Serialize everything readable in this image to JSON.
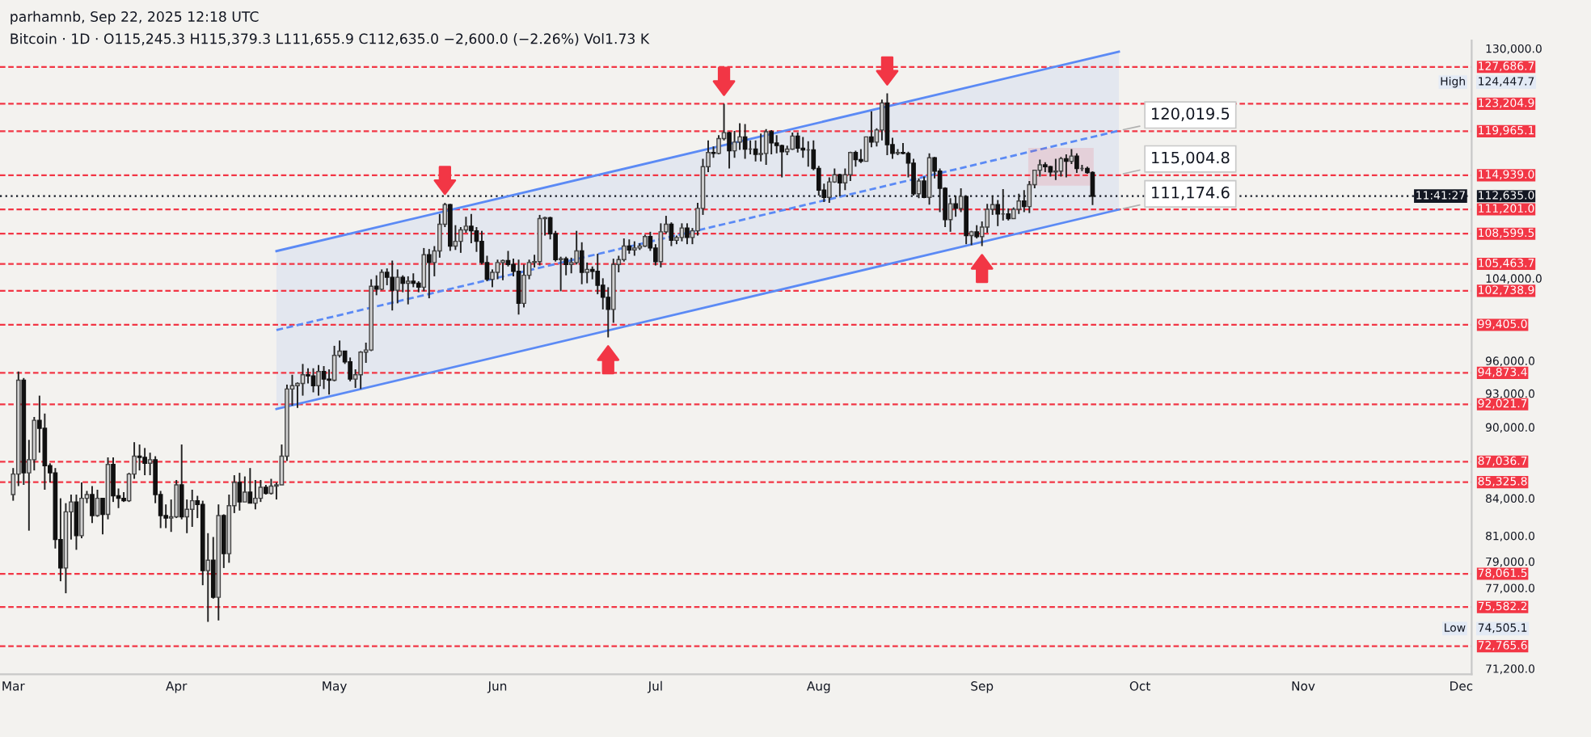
{
  "chart_data": {
    "type": "candlestick",
    "title": "Bitcoin · 1D · O115,245.3 H115,379.3 L111,655.9 C112,635.0 −2,600.0 (−2.26%) Vol1.73 K",
    "subtitle": "parhamnb, Sep 22, 2025 12:18 UTC",
    "log": true,
    "grid": false,
    "legend": false,
    "xlim": [
      "2025-02-26T12:00",
      "2025-12-03"
    ],
    "xticks": [
      {
        "value": "2025-03-01",
        "label": "Mar"
      },
      {
        "value": "2025-04-01",
        "label": "Apr"
      },
      {
        "value": "2025-05-01",
        "label": "May"
      },
      {
        "value": "2025-06-01",
        "label": "Jun"
      },
      {
        "value": "2025-07-01",
        "label": "Jul"
      },
      {
        "value": "2025-08-01",
        "label": "Aug"
      },
      {
        "value": "2025-09-01",
        "label": "Sep"
      },
      {
        "value": "2025-10-01",
        "label": "Oct"
      },
      {
        "value": "2025-11-01",
        "label": "Nov"
      },
      {
        "value": "2025-12-01",
        "label": "Dec"
      }
    ],
    "ylim": [
      70800,
      131000
    ],
    "yticks": [
      {
        "value": 130000,
        "label": "130,000.0"
      },
      {
        "value": 104000,
        "label": "104,000.0"
      },
      {
        "value": 96000,
        "label": "96,000.0"
      },
      {
        "value": 93000,
        "label": "93,000.0"
      },
      {
        "value": 90000,
        "label": "90,000.0"
      },
      {
        "value": 84000,
        "label": "84,000.0"
      },
      {
        "value": 81000,
        "label": "81,000.0"
      },
      {
        "value": 79000,
        "label": "79,000.0"
      },
      {
        "value": 77000,
        "label": "77,000.0"
      },
      {
        "value": 71200,
        "label": "71,200.0"
      }
    ],
    "x": [
      "2025-03-01",
      "2025-03-02",
      "2025-03-03",
      "2025-03-04",
      "2025-03-05",
      "2025-03-06",
      "2025-03-07",
      "2025-03-08",
      "2025-03-09",
      "2025-03-10",
      "2025-03-11",
      "2025-03-12",
      "2025-03-13",
      "2025-03-14",
      "2025-03-15",
      "2025-03-16",
      "2025-03-17",
      "2025-03-18",
      "2025-03-19",
      "2025-03-20",
      "2025-03-21",
      "2025-03-22",
      "2025-03-23",
      "2025-03-24",
      "2025-03-25",
      "2025-03-26",
      "2025-03-27",
      "2025-03-28",
      "2025-03-29",
      "2025-03-30",
      "2025-03-31",
      "2025-04-01",
      "2025-04-02",
      "2025-04-03",
      "2025-04-04",
      "2025-04-05",
      "2025-04-06",
      "2025-04-07",
      "2025-04-08",
      "2025-04-09",
      "2025-04-10",
      "2025-04-11",
      "2025-04-12",
      "2025-04-13",
      "2025-04-14",
      "2025-04-15",
      "2025-04-16",
      "2025-04-17",
      "2025-04-18",
      "2025-04-19",
      "2025-04-20",
      "2025-04-21",
      "2025-04-22",
      "2025-04-23",
      "2025-04-24",
      "2025-04-25",
      "2025-04-26",
      "2025-04-27",
      "2025-04-28",
      "2025-04-29",
      "2025-04-30",
      "2025-05-01",
      "2025-05-02",
      "2025-05-03",
      "2025-05-04",
      "2025-05-05",
      "2025-05-06",
      "2025-05-07",
      "2025-05-08",
      "2025-05-09",
      "2025-05-10",
      "2025-05-11",
      "2025-05-12",
      "2025-05-13",
      "2025-05-14",
      "2025-05-15",
      "2025-05-16",
      "2025-05-17",
      "2025-05-18",
      "2025-05-19",
      "2025-05-20",
      "2025-05-21",
      "2025-05-22",
      "2025-05-23",
      "2025-05-24",
      "2025-05-25",
      "2025-05-26",
      "2025-05-27",
      "2025-05-28",
      "2025-05-29",
      "2025-05-30",
      "2025-05-31",
      "2025-06-01",
      "2025-06-02",
      "2025-06-03",
      "2025-06-04",
      "2025-06-05",
      "2025-06-06",
      "2025-06-07",
      "2025-06-08",
      "2025-06-09",
      "2025-06-10",
      "2025-06-11",
      "2025-06-12",
      "2025-06-13",
      "2025-06-14",
      "2025-06-15",
      "2025-06-16",
      "2025-06-17",
      "2025-06-18",
      "2025-06-19",
      "2025-06-20",
      "2025-06-21",
      "2025-06-22",
      "2025-06-23",
      "2025-06-24",
      "2025-06-25",
      "2025-06-26",
      "2025-06-27",
      "2025-06-28",
      "2025-06-29",
      "2025-06-30",
      "2025-07-01",
      "2025-07-02",
      "2025-07-03",
      "2025-07-04",
      "2025-07-05",
      "2025-07-06",
      "2025-07-07",
      "2025-07-08",
      "2025-07-09",
      "2025-07-10",
      "2025-07-11",
      "2025-07-12",
      "2025-07-13",
      "2025-07-14",
      "2025-07-15",
      "2025-07-16",
      "2025-07-17",
      "2025-07-18",
      "2025-07-19",
      "2025-07-20",
      "2025-07-21",
      "2025-07-22",
      "2025-07-23",
      "2025-07-24",
      "2025-07-25",
      "2025-07-26",
      "2025-07-27",
      "2025-07-28",
      "2025-07-29",
      "2025-07-30",
      "2025-07-31",
      "2025-08-01",
      "2025-08-02",
      "2025-08-03",
      "2025-08-04",
      "2025-08-05",
      "2025-08-06",
      "2025-08-07",
      "2025-08-08",
      "2025-08-09",
      "2025-08-10",
      "2025-08-11",
      "2025-08-12",
      "2025-08-13",
      "2025-08-14",
      "2025-08-15",
      "2025-08-16",
      "2025-08-17",
      "2025-08-18",
      "2025-08-19",
      "2025-08-20",
      "2025-08-21",
      "2025-08-22",
      "2025-08-23",
      "2025-08-24",
      "2025-08-25",
      "2025-08-26",
      "2025-08-27",
      "2025-08-28",
      "2025-08-29",
      "2025-08-30",
      "2025-08-31",
      "2025-09-01",
      "2025-09-02",
      "2025-09-03",
      "2025-09-04",
      "2025-09-05",
      "2025-09-06",
      "2025-09-07",
      "2025-09-08",
      "2025-09-09",
      "2025-09-10",
      "2025-09-11",
      "2025-09-12",
      "2025-09-13",
      "2025-09-14",
      "2025-09-15",
      "2025-09-16",
      "2025-09-17",
      "2025-09-18",
      "2025-09-19",
      "2025-09-20",
      "2025-09-21",
      "2025-09-22"
    ],
    "ohlc": [
      [
        84300,
        86500,
        83800,
        86000
      ],
      [
        86000,
        95000,
        85000,
        94200
      ],
      [
        94200,
        94400,
        85100,
        86100
      ],
      [
        86100,
        88900,
        81400,
        87200
      ],
      [
        87200,
        90900,
        86300,
        90600
      ],
      [
        90600,
        92800,
        87800,
        89900
      ],
      [
        89900,
        91200,
        84700,
        86700
      ],
      [
        86700,
        86900,
        85300,
        86100
      ],
      [
        86100,
        86500,
        80000,
        80700
      ],
      [
        80700,
        84000,
        77500,
        78500
      ],
      [
        78500,
        83600,
        76600,
        82900
      ],
      [
        82900,
        84300,
        80700,
        83700
      ],
      [
        83700,
        84300,
        79900,
        81000
      ],
      [
        81000,
        85300,
        80800,
        84000
      ],
      [
        84000,
        84600,
        83600,
        84300
      ],
      [
        84300,
        85000,
        82000,
        82600
      ],
      [
        82600,
        84700,
        82500,
        84000
      ],
      [
        84000,
        84000,
        81100,
        82700
      ],
      [
        82700,
        87400,
        82300,
        86800
      ],
      [
        86800,
        87400,
        83700,
        84200
      ],
      [
        84200,
        84800,
        83200,
        84000
      ],
      [
        84000,
        84500,
        83700,
        83800
      ],
      [
        83800,
        86100,
        83700,
        86000
      ],
      [
        86000,
        88700,
        85600,
        87500
      ],
      [
        87500,
        88500,
        86300,
        87400
      ],
      [
        87400,
        88200,
        85900,
        86900
      ],
      [
        86900,
        87800,
        85900,
        87200
      ],
      [
        87200,
        87500,
        83600,
        84300
      ],
      [
        84300,
        84600,
        81600,
        82600
      ],
      [
        82600,
        83500,
        81600,
        82400
      ],
      [
        82400,
        83900,
        81300,
        82500
      ],
      [
        82500,
        85500,
        82400,
        85100
      ],
      [
        85100,
        88500,
        82300,
        82500
      ],
      [
        82500,
        83900,
        81200,
        83100
      ],
      [
        83100,
        84700,
        81700,
        83800
      ],
      [
        83800,
        84200,
        82400,
        83500
      ],
      [
        83500,
        83800,
        77200,
        78300
      ],
      [
        78300,
        81200,
        74505.1,
        79100
      ],
      [
        79100,
        80900,
        76200,
        76300
      ],
      [
        76300,
        83500,
        74600,
        82600
      ],
      [
        82600,
        82700,
        78500,
        79600
      ],
      [
        79600,
        84300,
        78900,
        83400
      ],
      [
        83400,
        85900,
        82800,
        85300
      ],
      [
        85300,
        86100,
        83000,
        83700
      ],
      [
        83700,
        85800,
        83700,
        84500
      ],
      [
        84500,
        86500,
        83600,
        83600
      ],
      [
        83600,
        85500,
        83100,
        84000
      ],
      [
        84000,
        85500,
        83700,
        84900
      ],
      [
        84900,
        85100,
        84300,
        84400
      ],
      [
        84400,
        85600,
        84300,
        85000
      ],
      [
        85000,
        85300,
        83900,
        85100
      ],
      [
        85100,
        88500,
        85100,
        87500
      ],
      [
        87500,
        93800,
        87100,
        93400
      ],
      [
        93400,
        94700,
        91900,
        93700
      ],
      [
        93700,
        94000,
        91700,
        93900
      ],
      [
        93900,
        95700,
        92800,
        94700
      ],
      [
        94700,
        95300,
        93900,
        94600
      ],
      [
        94600,
        95300,
        93100,
        93700
      ],
      [
        93700,
        95600,
        92800,
        95000
      ],
      [
        95000,
        95500,
        93400,
        94300
      ],
      [
        94300,
        95200,
        92900,
        94200
      ],
      [
        94200,
        97400,
        94100,
        96500
      ],
      [
        96500,
        97900,
        96300,
        96900
      ],
      [
        96900,
        96900,
        95700,
        95900
      ],
      [
        95900,
        96300,
        94100,
        94300
      ],
      [
        94300,
        95200,
        93500,
        94700
      ],
      [
        94700,
        96900,
        93400,
        96800
      ],
      [
        96800,
        97700,
        95800,
        97000
      ],
      [
        97000,
        103900,
        96900,
        103200
      ],
      [
        103200,
        104300,
        102300,
        102900
      ],
      [
        102900,
        104900,
        102800,
        104600
      ],
      [
        104600,
        105000,
        103300,
        104100
      ],
      [
        104100,
        105800,
        100800,
        102800
      ],
      [
        102800,
        104900,
        101500,
        104100
      ],
      [
        104100,
        104300,
        102600,
        103500
      ],
      [
        103500,
        104200,
        101400,
        103700
      ],
      [
        103700,
        104500,
        103100,
        103500
      ],
      [
        103500,
        103700,
        102600,
        103100
      ],
      [
        103100,
        107100,
        102700,
        106400
      ],
      [
        106400,
        107000,
        102000,
        105600
      ],
      [
        105600,
        107300,
        104200,
        106800
      ],
      [
        106800,
        110700,
        106100,
        109600
      ],
      [
        109600,
        111900,
        109300,
        111700
      ],
      [
        111700,
        111800,
        106800,
        107300
      ],
      [
        107300,
        109500,
        106900,
        107800
      ],
      [
        107800,
        109300,
        106600,
        109000
      ],
      [
        109000,
        110400,
        108700,
        109400
      ],
      [
        109400,
        110700,
        107600,
        108900
      ],
      [
        108900,
        109300,
        106700,
        107800
      ],
      [
        107800,
        108900,
        105400,
        105600
      ],
      [
        105600,
        106300,
        103700,
        103900
      ],
      [
        103900,
        104900,
        103100,
        104600
      ],
      [
        104600,
        105900,
        103900,
        105600
      ],
      [
        105600,
        105900,
        103800,
        105800
      ],
      [
        105800,
        106800,
        105200,
        105400
      ],
      [
        105400,
        106000,
        104200,
        104700
      ],
      [
        104700,
        105900,
        100400,
        101500
      ],
      [
        101500,
        105400,
        101100,
        104300
      ],
      [
        104300,
        105900,
        103900,
        105600
      ],
      [
        105600,
        106400,
        105100,
        105700
      ],
      [
        105700,
        110600,
        105300,
        110200
      ],
      [
        110200,
        110400,
        108400,
        110300
      ],
      [
        110300,
        110400,
        108000,
        108600
      ],
      [
        108600,
        108900,
        105700,
        105900
      ],
      [
        105900,
        106200,
        102700,
        106000
      ],
      [
        106000,
        106200,
        104300,
        105400
      ],
      [
        105400,
        106100,
        104500,
        105600
      ],
      [
        105600,
        108900,
        105400,
        106800
      ],
      [
        106800,
        107700,
        103400,
        104600
      ],
      [
        104600,
        105600,
        103500,
        104900
      ],
      [
        104900,
        105200,
        103900,
        104700
      ],
      [
        104700,
        106500,
        102400,
        103300
      ],
      [
        103300,
        104000,
        100900,
        102100
      ],
      [
        102100,
        103100,
        98200,
        100900
      ],
      [
        100900,
        106000,
        99600,
        105400
      ],
      [
        105400,
        106300,
        104600,
        105900
      ],
      [
        105900,
        108100,
        105700,
        107300
      ],
      [
        107300,
        108000,
        106500,
        106900
      ],
      [
        106900,
        107800,
        106300,
        107100
      ],
      [
        107100,
        107600,
        106900,
        107300
      ],
      [
        107300,
        108500,
        107200,
        108300
      ],
      [
        108300,
        108800,
        106800,
        107100
      ],
      [
        107100,
        107500,
        105300,
        105700
      ],
      [
        105700,
        109700,
        105100,
        108800
      ],
      [
        108800,
        110500,
        108600,
        109600
      ],
      [
        109600,
        109800,
        107300,
        107900
      ],
      [
        107900,
        108400,
        107500,
        108200
      ],
      [
        108200,
        109700,
        107800,
        109200
      ],
      [
        109200,
        109700,
        107500,
        108200
      ],
      [
        108200,
        109200,
        107500,
        108900
      ],
      [
        108900,
        111900,
        108400,
        111300
      ],
      [
        111300,
        116800,
        110600,
        115900
      ],
      [
        115900,
        118900,
        115300,
        117500
      ],
      [
        117500,
        118200,
        116900,
        117400
      ],
      [
        117400,
        119500,
        117300,
        119100
      ],
      [
        119100,
        123200,
        118900,
        119800
      ],
      [
        119800,
        119900,
        115700,
        117700
      ],
      [
        117700,
        120000,
        116900,
        118700
      ],
      [
        118700,
        120900,
        117800,
        119300
      ],
      [
        119300,
        120800,
        116800,
        117900
      ],
      [
        117900,
        118900,
        117300,
        117900
      ],
      [
        117900,
        118900,
        116500,
        117300
      ],
      [
        117300,
        119700,
        116500,
        117400
      ],
      [
        117400,
        120200,
        116100,
        119900
      ],
      [
        119900,
        120100,
        117300,
        118600
      ],
      [
        118600,
        119500,
        117400,
        118300
      ],
      [
        118300,
        118400,
        114700,
        117600
      ],
      [
        117600,
        118300,
        117200,
        117900
      ],
      [
        117900,
        119800,
        117800,
        119400
      ],
      [
        119400,
        119800,
        117500,
        118000
      ],
      [
        118000,
        119300,
        116900,
        117800
      ],
      [
        117800,
        118800,
        115900,
        117800
      ],
      [
        117800,
        118900,
        115500,
        115700
      ],
      [
        115700,
        116000,
        112700,
        113300
      ],
      [
        113300,
        114000,
        112000,
        112500
      ],
      [
        112500,
        114700,
        111900,
        114200
      ],
      [
        114200,
        115700,
        114100,
        115000
      ],
      [
        115000,
        115100,
        112600,
        114100
      ],
      [
        114100,
        115700,
        113300,
        115000
      ],
      [
        115000,
        117600,
        114300,
        117500
      ],
      [
        117500,
        117700,
        115900,
        116700
      ],
      [
        116700,
        117900,
        116300,
        116500
      ],
      [
        116500,
        119300,
        116500,
        119300
      ],
      [
        119300,
        122300,
        118100,
        118700
      ],
      [
        118700,
        120300,
        118200,
        120100
      ],
      [
        120100,
        123700,
        118900,
        123300
      ],
      [
        123300,
        124447.7,
        117200,
        118400
      ],
      [
        118400,
        119200,
        116800,
        117400
      ],
      [
        117400,
        117900,
        117200,
        117500
      ],
      [
        117500,
        118600,
        117300,
        117400
      ],
      [
        117400,
        117600,
        114700,
        116300
      ],
      [
        116300,
        116800,
        112700,
        112900
      ],
      [
        112900,
        114600,
        112400,
        114300
      ],
      [
        114300,
        114800,
        112400,
        112500
      ],
      [
        112500,
        117400,
        111700,
        116900
      ],
      [
        116900,
        117000,
        114600,
        115400
      ],
      [
        115400,
        115700,
        110900,
        113500
      ],
      [
        113500,
        113600,
        109300,
        110100
      ],
      [
        110100,
        112400,
        108800,
        111800
      ],
      [
        111800,
        112700,
        110400,
        111300
      ],
      [
        111300,
        113500,
        110900,
        112600
      ],
      [
        112600,
        112700,
        107500,
        108400
      ],
      [
        108400,
        108900,
        107400,
        108800
      ],
      [
        108800,
        109500,
        108100,
        108300
      ],
      [
        108300,
        109900,
        107300,
        109300
      ],
      [
        109300,
        111800,
        108700,
        111200
      ],
      [
        111200,
        112700,
        110600,
        111700
      ],
      [
        111700,
        112200,
        109400,
        110700
      ],
      [
        110700,
        113400,
        110000,
        110700
      ],
      [
        110700,
        111300,
        110000,
        110200
      ],
      [
        110200,
        111400,
        110200,
        111200
      ],
      [
        111200,
        112900,
        110700,
        112100
      ],
      [
        112100,
        113300,
        110900,
        111500
      ],
      [
        111500,
        114300,
        110800,
        113900
      ],
      [
        113900,
        115500,
        113500,
        115500
      ],
      [
        115500,
        116700,
        114800,
        116100
      ],
      [
        116100,
        116400,
        115300,
        115900
      ],
      [
        115900,
        116000,
        114800,
        115300
      ],
      [
        115300,
        116800,
        114400,
        115400
      ],
      [
        115400,
        117000,
        114800,
        116800
      ],
      [
        116800,
        117300,
        114700,
        116500
      ],
      [
        116500,
        117900,
        116200,
        117100
      ],
      [
        117100,
        117400,
        115200,
        115700
      ],
      [
        115700,
        116100,
        115400,
        115700
      ],
      [
        115700,
        115900,
        115100,
        115245.3
      ],
      [
        115245.3,
        115379.3,
        111655.9,
        112635.0
      ]
    ],
    "series": [
      {
        "type": "line",
        "color": "#5b8af5",
        "line_style": "solid",
        "x": [
          "2025-04-20",
          "2025-09-27"
        ],
        "values": [
          106780,
          129600
        ]
      },
      {
        "type": "line",
        "color": "#5b8af5",
        "line_style": "dashed",
        "x": [
          "2025-04-20",
          "2025-09-27"
        ],
        "values": [
          98900,
          120019.5
        ],
        "lower": [
          91600,
          111174.6
        ],
        "upper": [
          106780,
          129600
        ]
      },
      {
        "type": "line",
        "color": "#5b8af5",
        "line_style": "solid",
        "x": [
          "2025-04-20",
          "2025-09-27"
        ],
        "values": [
          91600,
          111174.6
        ]
      }
    ],
    "ref_lines": [
      {
        "axis": "y",
        "value": 127686.7,
        "label": "127,686.7",
        "color": "#f23645",
        "line_style": "dashed"
      },
      {
        "axis": "y",
        "value": 123204.9,
        "label": "123,204.9",
        "color": "#f23645",
        "line_style": "dashed"
      },
      {
        "axis": "y",
        "value": 119965.1,
        "label": "119,965.1",
        "color": "#f23645",
        "line_style": "dashed"
      },
      {
        "axis": "y",
        "value": 114939.0,
        "label": "114,939.0",
        "color": "#f23645",
        "line_style": "dashed"
      },
      {
        "axis": "y",
        "value": 112635.0,
        "label": "112,635.0",
        "color": "#131722",
        "line_style": "dotted"
      },
      {
        "axis": "y",
        "value": 111201.0,
        "label": "111,201.0",
        "color": "#f23645",
        "line_style": "dashed"
      },
      {
        "axis": "y",
        "value": 108599.5,
        "label": "108,599.5",
        "color": "#f23645",
        "line_style": "dashed"
      },
      {
        "axis": "y",
        "value": 105463.7,
        "label": "105,463.7",
        "color": "#f23645",
        "line_style": "dashed"
      },
      {
        "axis": "y",
        "value": 102738.9,
        "label": "102,738.9",
        "color": "#f23645",
        "line_style": "dashed"
      },
      {
        "axis": "y",
        "value": 99405.0,
        "label": "99,405.0",
        "color": "#f23645",
        "line_style": "dashed"
      },
      {
        "axis": "y",
        "value": 94873.4,
        "label": "94,873.4",
        "color": "#f23645",
        "line_style": "dashed"
      },
      {
        "axis": "y",
        "value": 92021.7,
        "label": "92,021.7",
        "color": "#f23645",
        "line_style": "dashed"
      },
      {
        "axis": "y",
        "value": 87036.7,
        "label": "87,036.7",
        "color": "#f23645",
        "line_style": "dashed"
      },
      {
        "axis": "y",
        "value": 85325.8,
        "label": "85,325.8",
        "color": "#f23645",
        "line_style": "dashed"
      },
      {
        "axis": "y",
        "value": 78061.5,
        "label": "78,061.5",
        "color": "#f23645",
        "line_style": "dashed"
      },
      {
        "axis": "y",
        "value": 75582.2,
        "label": "75,582.2",
        "color": "#f23645",
        "line_style": "dashed"
      },
      {
        "axis": "y",
        "value": 72765.6,
        "label": "72,765.6",
        "color": "#f23645",
        "line_style": "dashed"
      }
    ],
    "annotations": [
      {
        "text": "120,019.5",
        "x": "2025-09-27",
        "y": 120019.5
      },
      {
        "text": "115,004.8",
        "x": "2025-09-27",
        "y": 115004.8
      },
      {
        "text": "111,174.6",
        "x": "2025-09-27",
        "y": 111174.6
      },
      "High",
      "124,447.7",
      "Low",
      "74,505.1",
      "11:41:27"
    ]
  }
}
